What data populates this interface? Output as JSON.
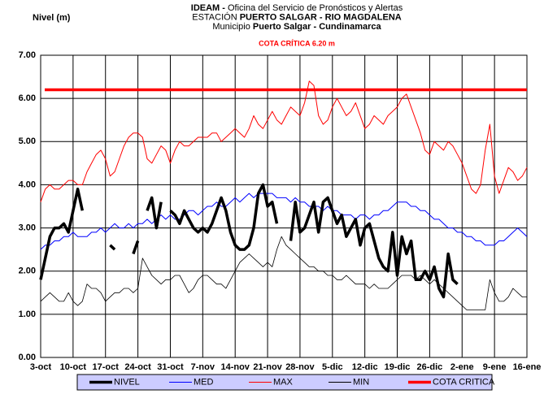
{
  "chart_data": {
    "type": "line",
    "title_lines": [
      [
        {
          "text": "IDEAM - ",
          "bold": true
        },
        {
          "text": "Oficina del Servicio de Pronósticos y Alertas",
          "bold": false
        }
      ],
      [
        {
          "text": "ESTACIÓN ",
          "bold": false
        },
        {
          "text": "PUERTO SALGAR - RIO MAGDALENA",
          "bold": true
        }
      ],
      [
        {
          "text": "Municipio ",
          "bold": false
        },
        {
          "text": "Puerto Salgar - Cundinamarca",
          "bold": true
        }
      ]
    ],
    "annotation": "COTA CRÍTICA 6.20 m",
    "y_label": "Nivel (m)",
    "categories": [
      "3-oct",
      null,
      null,
      null,
      null,
      null,
      null,
      "10-oct",
      null,
      null,
      null,
      null,
      null,
      null,
      "17-oct",
      null,
      null,
      null,
      null,
      null,
      null,
      "24-oct",
      null,
      null,
      null,
      null,
      null,
      null,
      "31-oct",
      null,
      null,
      null,
      null,
      null,
      null,
      "7-nov",
      null,
      null,
      null,
      null,
      null,
      null,
      "14-nov",
      null,
      null,
      null,
      null,
      null,
      null,
      "21-nov",
      null,
      null,
      null,
      null,
      null,
      null,
      "28-nov",
      null,
      null,
      null,
      null,
      null,
      null,
      "5-dic",
      null,
      null,
      null,
      null,
      null,
      null,
      "12-dic",
      null,
      null,
      null,
      null,
      null,
      null,
      "19-dic",
      null,
      null,
      null,
      null,
      null,
      null,
      "26-dic",
      null,
      null,
      null,
      null,
      null,
      null,
      "2-ene",
      null,
      null,
      null,
      null,
      null,
      null,
      "9-ene",
      null,
      null,
      null,
      null,
      null,
      null,
      "16-ene"
    ],
    "ylim": [
      0,
      7
    ],
    "yticks": [
      {
        "value": 0,
        "label": "0.00"
      },
      {
        "value": 1,
        "label": "1.00"
      },
      {
        "value": 2,
        "label": "2.00"
      },
      {
        "value": 3,
        "label": "3.00"
      },
      {
        "value": 4,
        "label": "4.00"
      },
      {
        "value": 5,
        "label": "5.00"
      },
      {
        "value": 6,
        "label": "6.00"
      },
      {
        "value": 7,
        "label": "7.00"
      }
    ],
    "grid": true,
    "series": [
      {
        "name": "NIVEL",
        "color": "#000000",
        "line_width": 3.5,
        "values": [
          1.8,
          2.3,
          2.8,
          3.0,
          3.0,
          3.1,
          2.9,
          3.4,
          3.9,
          3.4,
          null,
          null,
          null,
          null,
          null,
          2.6,
          2.5,
          null,
          null,
          null,
          2.4,
          2.7,
          null,
          3.4,
          3.7,
          3.0,
          3.6,
          null,
          3.4,
          3.3,
          3.1,
          3.4,
          3.2,
          3.0,
          2.9,
          3.0,
          2.9,
          3.1,
          3.4,
          3.7,
          3.4,
          2.9,
          2.6,
          2.5,
          2.5,
          2.6,
          3.0,
          3.8,
          4.0,
          3.5,
          3.6,
          3.1,
          null,
          null,
          2.7,
          3.6,
          2.9,
          3.0,
          3.3,
          3.6,
          2.9,
          3.6,
          3.7,
          3.4,
          3.1,
          3.3,
          2.8,
          3.0,
          3.2,
          2.6,
          3.0,
          3.1,
          2.7,
          2.3,
          2.1,
          2.0,
          2.9,
          1.9,
          2.8,
          2.4,
          2.7,
          1.8,
          1.8,
          2.0,
          1.8,
          2.1,
          1.6,
          1.4,
          2.4,
          1.8,
          1.7,
          null,
          null,
          null,
          null,
          null,
          null,
          null,
          null,
          null,
          null,
          null,
          null,
          null,
          null,
          null
        ]
      },
      {
        "name": "MED",
        "color": "#0000ff",
        "line_width": 1,
        "values": [
          2.5,
          2.6,
          2.6,
          2.7,
          2.7,
          2.8,
          2.8,
          2.9,
          2.8,
          2.8,
          2.8,
          2.9,
          2.9,
          3.0,
          2.9,
          3.0,
          3.1,
          3.0,
          3.0,
          3.1,
          3.0,
          3.1,
          3.1,
          3.2,
          3.1,
          3.2,
          3.3,
          3.2,
          3.3,
          3.2,
          3.2,
          3.3,
          3.4,
          3.4,
          3.3,
          3.4,
          3.5,
          3.5,
          3.6,
          3.5,
          3.5,
          3.6,
          3.7,
          3.6,
          3.7,
          3.8,
          3.7,
          3.8,
          3.8,
          3.8,
          3.8,
          3.7,
          3.7,
          3.7,
          3.6,
          3.7,
          3.6,
          3.6,
          3.5,
          3.5,
          3.5,
          3.4,
          3.5,
          3.4,
          3.4,
          3.3,
          3.3,
          3.3,
          3.2,
          3.3,
          3.3,
          3.2,
          3.3,
          3.3,
          3.4,
          3.4,
          3.5,
          3.6,
          3.6,
          3.6,
          3.5,
          3.5,
          3.4,
          3.4,
          3.3,
          3.2,
          3.2,
          3.1,
          3.0,
          3.0,
          2.9,
          2.9,
          2.8,
          2.8,
          2.7,
          2.7,
          2.6,
          2.6,
          2.6,
          2.7,
          2.7,
          2.8,
          2.9,
          3.0,
          2.9,
          2.8
        ]
      },
      {
        "name": "MAX",
        "color": "#ff0000",
        "line_width": 1,
        "values": [
          3.6,
          3.9,
          4.0,
          3.9,
          3.9,
          4.0,
          4.1,
          4.1,
          4.0,
          4.0,
          4.3,
          4.5,
          4.7,
          4.8,
          4.6,
          4.2,
          4.3,
          4.6,
          4.9,
          5.1,
          5.2,
          5.2,
          5.1,
          4.6,
          4.5,
          4.7,
          4.9,
          4.8,
          4.5,
          4.8,
          5.0,
          4.9,
          4.9,
          5.0,
          5.1,
          5.1,
          5.1,
          5.2,
          5.2,
          5.0,
          5.1,
          5.2,
          5.3,
          5.2,
          5.1,
          5.3,
          5.6,
          5.4,
          5.3,
          5.5,
          5.7,
          5.5,
          5.4,
          5.6,
          5.8,
          5.7,
          5.6,
          5.9,
          6.4,
          6.3,
          5.6,
          5.4,
          5.5,
          5.8,
          6.0,
          5.8,
          5.6,
          5.7,
          5.9,
          5.6,
          5.3,
          5.4,
          5.6,
          5.5,
          5.4,
          5.6,
          5.7,
          5.8,
          6.0,
          6.1,
          5.8,
          5.5,
          5.2,
          4.8,
          4.7,
          5.0,
          4.9,
          4.8,
          5.0,
          4.9,
          4.7,
          4.5,
          4.2,
          3.9,
          3.8,
          4.0,
          4.8,
          5.4,
          4.2,
          3.8,
          4.1,
          4.4,
          4.3,
          4.1,
          4.2,
          4.4
        ]
      },
      {
        "name": "MIN",
        "color": "#000000",
        "line_width": 0.8,
        "values": [
          1.3,
          1.4,
          1.5,
          1.4,
          1.3,
          1.3,
          1.5,
          1.3,
          1.2,
          1.3,
          1.7,
          1.6,
          1.6,
          1.5,
          1.3,
          1.4,
          1.5,
          1.5,
          1.6,
          1.6,
          1.5,
          1.6,
          2.3,
          2.1,
          1.9,
          1.8,
          1.7,
          1.8,
          1.8,
          1.9,
          1.9,
          1.7,
          1.5,
          1.6,
          1.8,
          1.9,
          1.9,
          1.8,
          1.7,
          1.7,
          1.6,
          1.8,
          2.0,
          2.2,
          2.3,
          2.4,
          2.3,
          2.2,
          2.1,
          2.2,
          2.1,
          2.5,
          2.8,
          2.6,
          2.5,
          2.4,
          2.3,
          2.2,
          2.1,
          2.1,
          2.0,
          2.0,
          1.9,
          1.9,
          1.8,
          1.8,
          1.9,
          1.8,
          1.7,
          1.7,
          1.7,
          1.6,
          1.7,
          1.6,
          1.6,
          1.6,
          1.7,
          1.8,
          1.9,
          1.9,
          1.9,
          1.8,
          1.9,
          1.8,
          1.7,
          1.8,
          1.7,
          1.6,
          1.5,
          1.4,
          1.3,
          1.2,
          1.1,
          1.1,
          1.1,
          1.1,
          1.1,
          1.8,
          1.5,
          1.3,
          1.3,
          1.4,
          1.6,
          1.5,
          1.4,
          1.4
        ]
      }
    ],
    "threshold": {
      "name": "COTA CRITICA",
      "value": 6.2,
      "color": "#ff0000"
    },
    "legend": "bottom"
  }
}
